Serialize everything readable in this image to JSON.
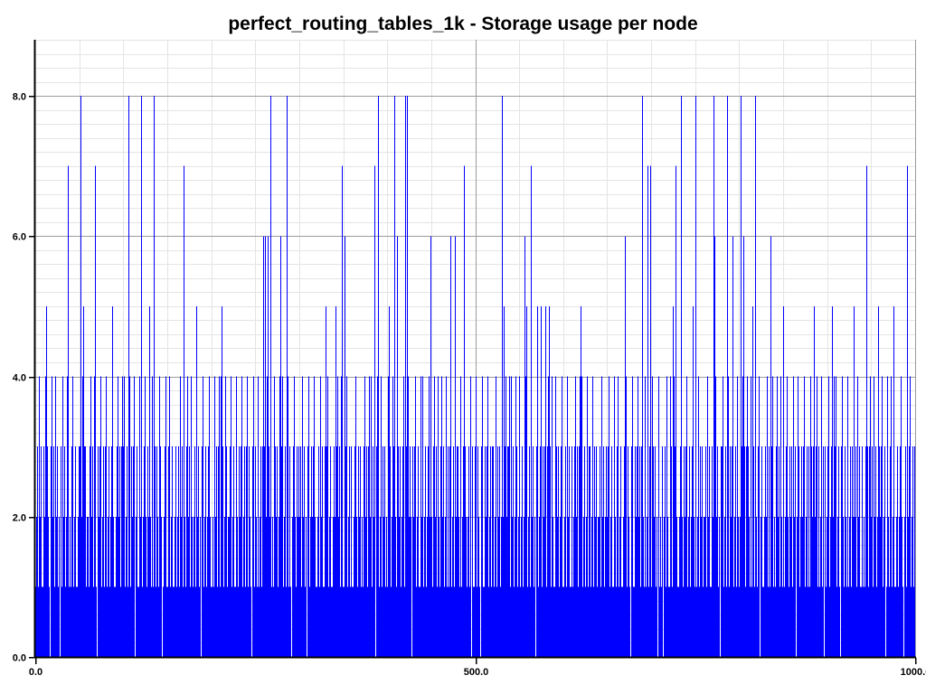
{
  "window": {
    "background": "#ffffff"
  },
  "chart_data": {
    "type": "bar",
    "title": "perfect_routing_tables_1k - Storage usage per node",
    "xlabel": "",
    "ylabel": "",
    "series_name": "Storage usage per node",
    "xlim": [
      0,
      1000
    ],
    "ylim": [
      0,
      8.8
    ],
    "x_major_ticks": [
      {
        "v": 0,
        "label": "0.0"
      },
      {
        "v": 500,
        "label": "500.0"
      },
      {
        "v": 1000,
        "label": "1000.0"
      }
    ],
    "y_major_ticks": [
      {
        "v": 0,
        "label": "0.0"
      },
      {
        "v": 2,
        "label": "2.0"
      },
      {
        "v": 4,
        "label": "4.0"
      },
      {
        "v": 6,
        "label": "6.0"
      },
      {
        "v": 8,
        "label": "8.0"
      }
    ],
    "x_minor_step": 50,
    "y_minor_step": 0.2,
    "grid": true,
    "legend_position": "none",
    "bar_color": "#0000ff",
    "axis_color": "#000000",
    "major_grid_color": "#9b9b9b",
    "minor_grid_color": "#e4e4e4",
    "n_nodes": 1000,
    "value_min": 0,
    "value_max": 8,
    "values_digits": "1231423113245321034123142312031423124712134123112338245323122134231471032341231341231235211203423134341231841323402311428123421325321418313214320123411341231123123142311721342314212315231203412312342112134231341453124312234123114213234123132413210341321412313636246328121432312346341231841310234213232314231203412312342112314231135341231123253423147116234123131123421323121342313424132703418124132312145312438216323123418384231203234123114241231234262134231421340231241313612316233214123732123140311324132103411323412313312413231282534231341423124312412312645123172312035123521323513453142114323123411231423113121342313454123124133124132312231423120323412311421341231123641321034113234123138214127137143231204121302314211423154372112382132341231235218124132312123142311328642312033412318413236123114212834631343214153182134023112324132163412134231421512342132314230243121323412313143235234131241303123412352413412310342132141231325231423113121347313423142312532341230142134125112311234210231723412313"
  }
}
